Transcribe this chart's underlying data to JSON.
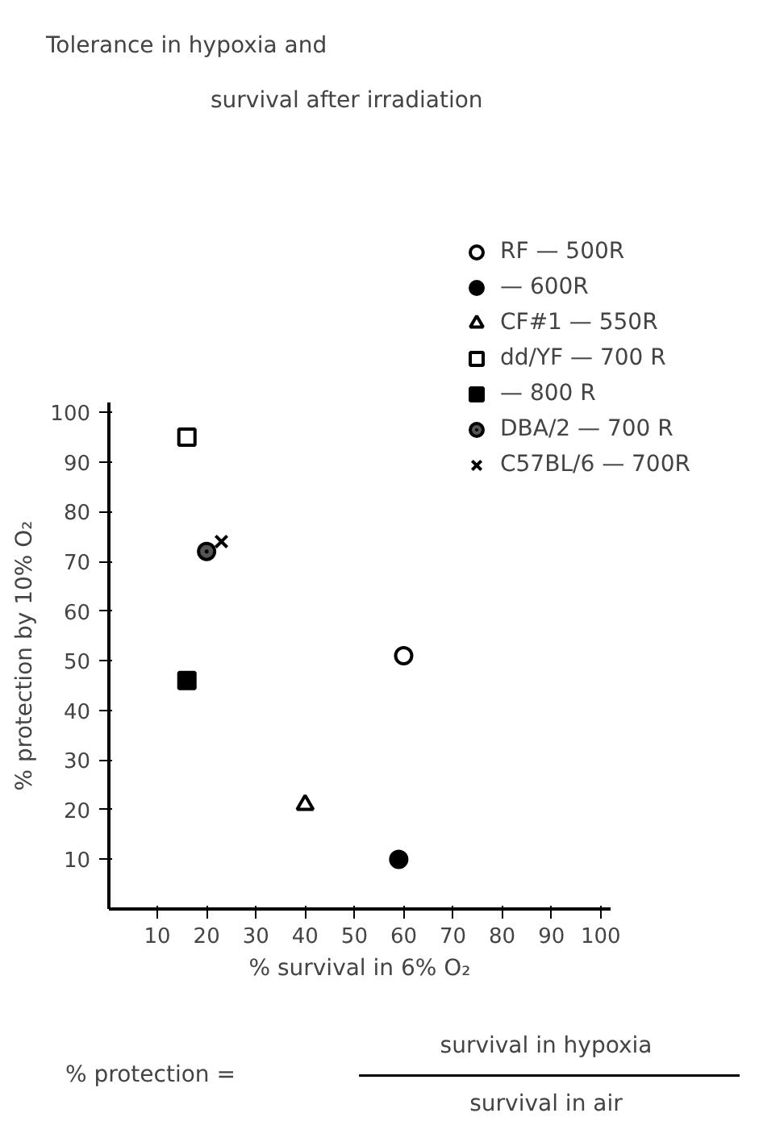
{
  "chart_data": {
    "type": "scatter",
    "title": "Tolerance in hypoxia and",
    "subtitle": "survival after irradiation",
    "xlabel": "% survival in 6% O₂",
    "ylabel": "% protection by 10% O₂",
    "xlim": [
      0,
      102
    ],
    "ylim": [
      0,
      102
    ],
    "xticks": [
      10,
      20,
      30,
      40,
      50,
      60,
      70,
      80,
      90,
      100
    ],
    "yticks": [
      10,
      20,
      30,
      40,
      50,
      60,
      70,
      80,
      90,
      100
    ],
    "grid": false,
    "legend": "top right",
    "series": [
      {
        "name": "RF — 500R",
        "color": "#000000",
        "marker": "circle_open",
        "x": [
          60
        ],
        "values": [
          51
        ]
      },
      {
        "name": "— 600R",
        "color": "#000000",
        "marker": "circle",
        "x": [
          59
        ],
        "values": [
          10
        ]
      },
      {
        "name": "CF#1 — 550R",
        "color": "#000000",
        "marker": "triangle_open",
        "x": [
          40
        ],
        "values": [
          21
        ]
      },
      {
        "name": "dd/YF — 700 R",
        "color": "#000000",
        "marker": "square_open",
        "x": [
          16
        ],
        "values": [
          95
        ]
      },
      {
        "name": "— 800 R",
        "color": "#000000",
        "marker": "square",
        "x": [
          16
        ],
        "values": [
          46
        ]
      },
      {
        "name": "DBA/2 — 700 R",
        "color": "#000000",
        "marker": "circle_dot",
        "x": [
          20
        ],
        "values": [
          72
        ]
      },
      {
        "name": "C57BL/6 — 700R",
        "color": "#000000",
        "marker": "x",
        "x": [
          23
        ],
        "values": [
          74
        ]
      }
    ],
    "annotations": [
      "% protection =",
      "survival in hypoxia",
      "survival in air"
    ]
  }
}
